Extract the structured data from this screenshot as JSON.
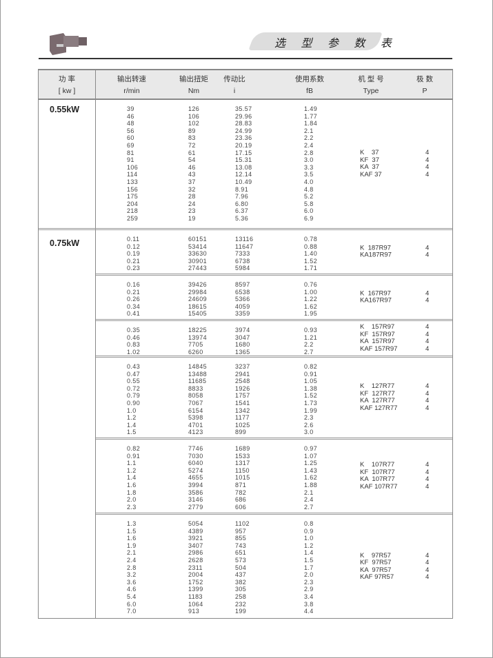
{
  "header": {
    "title": "选 型 参 数 表"
  },
  "table": {
    "columns": [
      {
        "cn": "功  率",
        "unit": "[ kw ]"
      },
      {
        "cn": "输出转速",
        "unit": "r/min"
      },
      {
        "cn": "输出扭矩",
        "unit": "Nm"
      },
      {
        "cn": "传动比",
        "unit": "i"
      },
      {
        "cn": "使用系数",
        "unit": "fB"
      },
      {
        "cn": "机 型 号",
        "unit": "Type"
      },
      {
        "cn": "极  数",
        "unit": "P"
      }
    ],
    "powers": [
      "0.55kW",
      "0.75kW"
    ],
    "groups": [
      {
        "power": "0.55kW",
        "rows": [
          [
            "39",
            "126",
            "35.57",
            "1.49"
          ],
          [
            "46",
            "106",
            "29.96",
            "1.77"
          ],
          [
            "48",
            "102",
            "28.83",
            "1.84"
          ],
          [
            "56",
            "89",
            "24.99",
            "2.1"
          ],
          [
            "60",
            "83",
            "23.36",
            "2.2"
          ],
          [
            "69",
            "72",
            "20.19",
            "2.4"
          ],
          [
            "81",
            "61",
            "17.15",
            "2.8"
          ],
          [
            "91",
            "54",
            "15.31",
            "3.0"
          ],
          [
            "106",
            "46",
            "13.08",
            "3.3"
          ],
          [
            "114",
            "43",
            "12.14",
            "3.5"
          ],
          [
            "133",
            "37",
            "10.49",
            "4.0"
          ],
          [
            "156",
            "32",
            "8.91",
            "4.8"
          ],
          [
            "175",
            "28",
            "7.96",
            "5.2"
          ],
          [
            "204",
            "24",
            "6.80",
            "5.8"
          ],
          [
            "218",
            "23",
            "6.37",
            "6.0"
          ],
          [
            "259",
            "19",
            "5.36",
            "6.9"
          ]
        ],
        "types": [
          [
            "K    37",
            "4"
          ],
          [
            "KF  37",
            "4"
          ],
          [
            "KA  37",
            "4"
          ],
          [
            "KAF 37",
            "4"
          ]
        ]
      },
      {
        "power": "0.75kW",
        "rows": [
          [
            "0.11",
            "60151",
            "13116",
            "0.78"
          ],
          [
            "0.12",
            "53414",
            "11647",
            "0.88"
          ],
          [
            "0.19",
            "33630",
            "7333",
            "1.40"
          ],
          [
            "0.21",
            "30901",
            "6738",
            "1.52"
          ],
          [
            "0.23",
            "27443",
            "5984",
            "1.71"
          ]
        ],
        "types": [
          [
            "K  187R97",
            "4"
          ],
          [
            "KA187R97",
            "4"
          ]
        ]
      },
      {
        "power": "0.75kW",
        "rows": [
          [
            "0.16",
            "39426",
            "8597",
            "0.76"
          ],
          [
            "0.21",
            "29984",
            "6538",
            "1.00"
          ],
          [
            "0.26",
            "24609",
            "5366",
            "1.22"
          ],
          [
            "0.34",
            "18615",
            "4059",
            "1.62"
          ],
          [
            "0.41",
            "15405",
            "3359",
            "1.95"
          ]
        ],
        "types": [
          [
            "K  167R97",
            "4"
          ],
          [
            "KA167R97",
            "4"
          ]
        ]
      },
      {
        "power": "0.75kW",
        "rows": [
          [
            "0.35",
            "18225",
            "3974",
            "0.93"
          ],
          [
            "0.46",
            "13974",
            "3047",
            "1.21"
          ],
          [
            "0.83",
            "7705",
            "1680",
            "2.2"
          ],
          [
            "1.02",
            "6260",
            "1365",
            "2.7"
          ]
        ],
        "types": [
          [
            "K    157R97",
            "4"
          ],
          [
            "KF  157R97",
            "4"
          ],
          [
            "KA  157R97",
            "4"
          ],
          [
            "KAF 157R97",
            "4"
          ]
        ]
      },
      {
        "power": "0.75kW",
        "rows": [
          [
            "0.43",
            "14845",
            "3237",
            "0.82"
          ],
          [
            "0.47",
            "13488",
            "2941",
            "0.91"
          ],
          [
            "0.55",
            "11685",
            "2548",
            "1.05"
          ],
          [
            "0.72",
            "8833",
            "1926",
            "1.38"
          ],
          [
            "0.79",
            "8058",
            "1757",
            "1.52"
          ],
          [
            "0.90",
            "7067",
            "1541",
            "1.73"
          ],
          [
            "1.0",
            "6154",
            "1342",
            "1.99"
          ],
          [
            "1.2",
            "5398",
            "1177",
            "2.3"
          ],
          [
            "1.4",
            "4701",
            "1025",
            "2.6"
          ],
          [
            "1.5",
            "4123",
            "899",
            "3.0"
          ]
        ],
        "types": [
          [
            "K    127R77",
            "4"
          ],
          [
            "KF  127R77",
            "4"
          ],
          [
            "KA  127R77",
            "4"
          ],
          [
            "KAF 127R77",
            "4"
          ]
        ]
      },
      {
        "power": "0.75kW",
        "rows": [
          [
            "0.82",
            "7746",
            "1689",
            "0.97"
          ],
          [
            "0.91",
            "7030",
            "1533",
            "1.07"
          ],
          [
            "1.1",
            "6040",
            "1317",
            "1.25"
          ],
          [
            "1.2",
            "5274",
            "1150",
            "1.43"
          ],
          [
            "1.4",
            "4655",
            "1015",
            "1.62"
          ],
          [
            "1.6",
            "3994",
            "871",
            "1.88"
          ],
          [
            "1.8",
            "3586",
            "782",
            "2.1"
          ],
          [
            "2.0",
            "3146",
            "686",
            "2.4"
          ],
          [
            "2.3",
            "2779",
            "606",
            "2.7"
          ]
        ],
        "types": [
          [
            "K    107R77",
            "4"
          ],
          [
            "KF  107R77",
            "4"
          ],
          [
            "KA  107R77",
            "4"
          ],
          [
            "KAF 107R77",
            "4"
          ]
        ]
      },
      {
        "power": "0.75kW",
        "rows": [
          [
            "1.3",
            "5054",
            "1102",
            "0.8"
          ],
          [
            "1.5",
            "4389",
            "957",
            "0.9"
          ],
          [
            "1.6",
            "3921",
            "855",
            "1.0"
          ],
          [
            "1.9",
            "3407",
            "743",
            "1.2"
          ],
          [
            "2.1",
            "2986",
            "651",
            "1.4"
          ],
          [
            "2.4",
            "2628",
            "573",
            "1.5"
          ],
          [
            "2.8",
            "2311",
            "504",
            "1.7"
          ],
          [
            "3.2",
            "2004",
            "437",
            "2.0"
          ],
          [
            "3.6",
            "1752",
            "382",
            "2.3"
          ],
          [
            "4.6",
            "1399",
            "305",
            "2.9"
          ],
          [
            "5.4",
            "1183",
            "258",
            "3.4"
          ],
          [
            "6.0",
            "1064",
            "232",
            "3.8"
          ],
          [
            "7.0",
            "913",
            "199",
            "4.4"
          ]
        ],
        "types": [
          [
            "K    97R57",
            "4"
          ],
          [
            "KF  97R57",
            "4"
          ],
          [
            "KA  97R57",
            "4"
          ],
          [
            "KAF 97R57",
            "4"
          ]
        ]
      }
    ]
  }
}
